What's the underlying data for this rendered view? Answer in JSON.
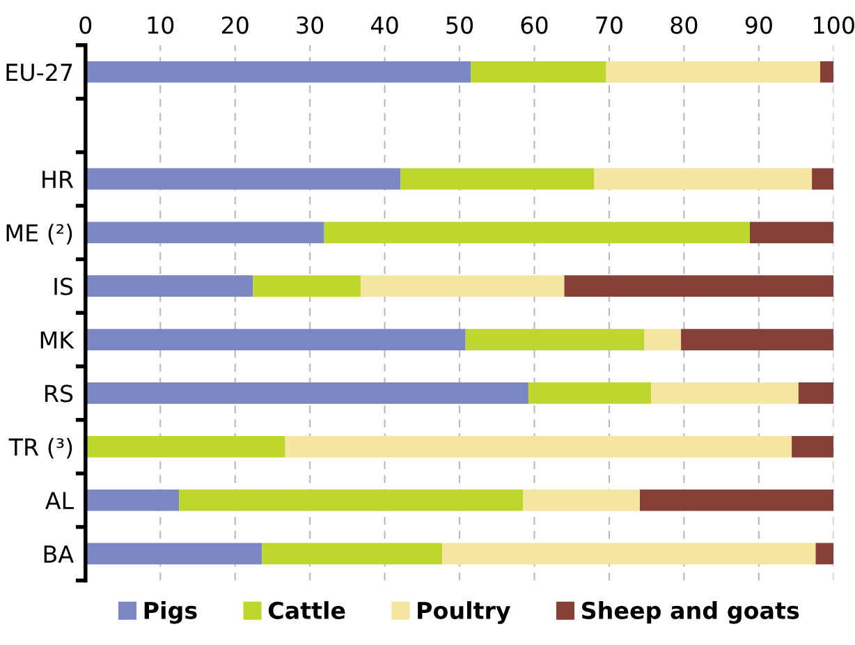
{
  "chart_data": {
    "type": "bar",
    "orientation": "horizontal",
    "stacked": true,
    "categories": [
      "EU-27",
      null,
      "HR",
      "ME (²)",
      "IS",
      "MK",
      "RS",
      "TR (³)",
      "AL",
      "BA"
    ],
    "series": [
      {
        "name": "Pigs",
        "color": "#7b87c2",
        "values": [
          51.5,
          null,
          42.1,
          31.9,
          22.4,
          50.8,
          59.2,
          0,
          12.5,
          23.6
        ]
      },
      {
        "name": "Cattle",
        "color": "#bed72f",
        "values": [
          18.1,
          null,
          25.9,
          56.9,
          14.4,
          23.9,
          16.4,
          26.7,
          46.0,
          24.1
        ]
      },
      {
        "name": "Poultry",
        "color": "#f5e5a0",
        "values": [
          28.6,
          null,
          29.1,
          0,
          27.2,
          4.9,
          19.7,
          67.7,
          15.6,
          49.9
        ]
      },
      {
        "name": "Sheep and goats",
        "color": "#854137",
        "values": [
          1.8,
          null,
          2.9,
          11.2,
          36.0,
          20.4,
          4.7,
          5.6,
          25.9,
          2.4
        ]
      }
    ],
    "xlim": [
      0,
      100
    ],
    "xticks": [
      0,
      10,
      20,
      30,
      40,
      50,
      60,
      70,
      80,
      90,
      100
    ],
    "grid": "x",
    "legend": "bottom"
  }
}
